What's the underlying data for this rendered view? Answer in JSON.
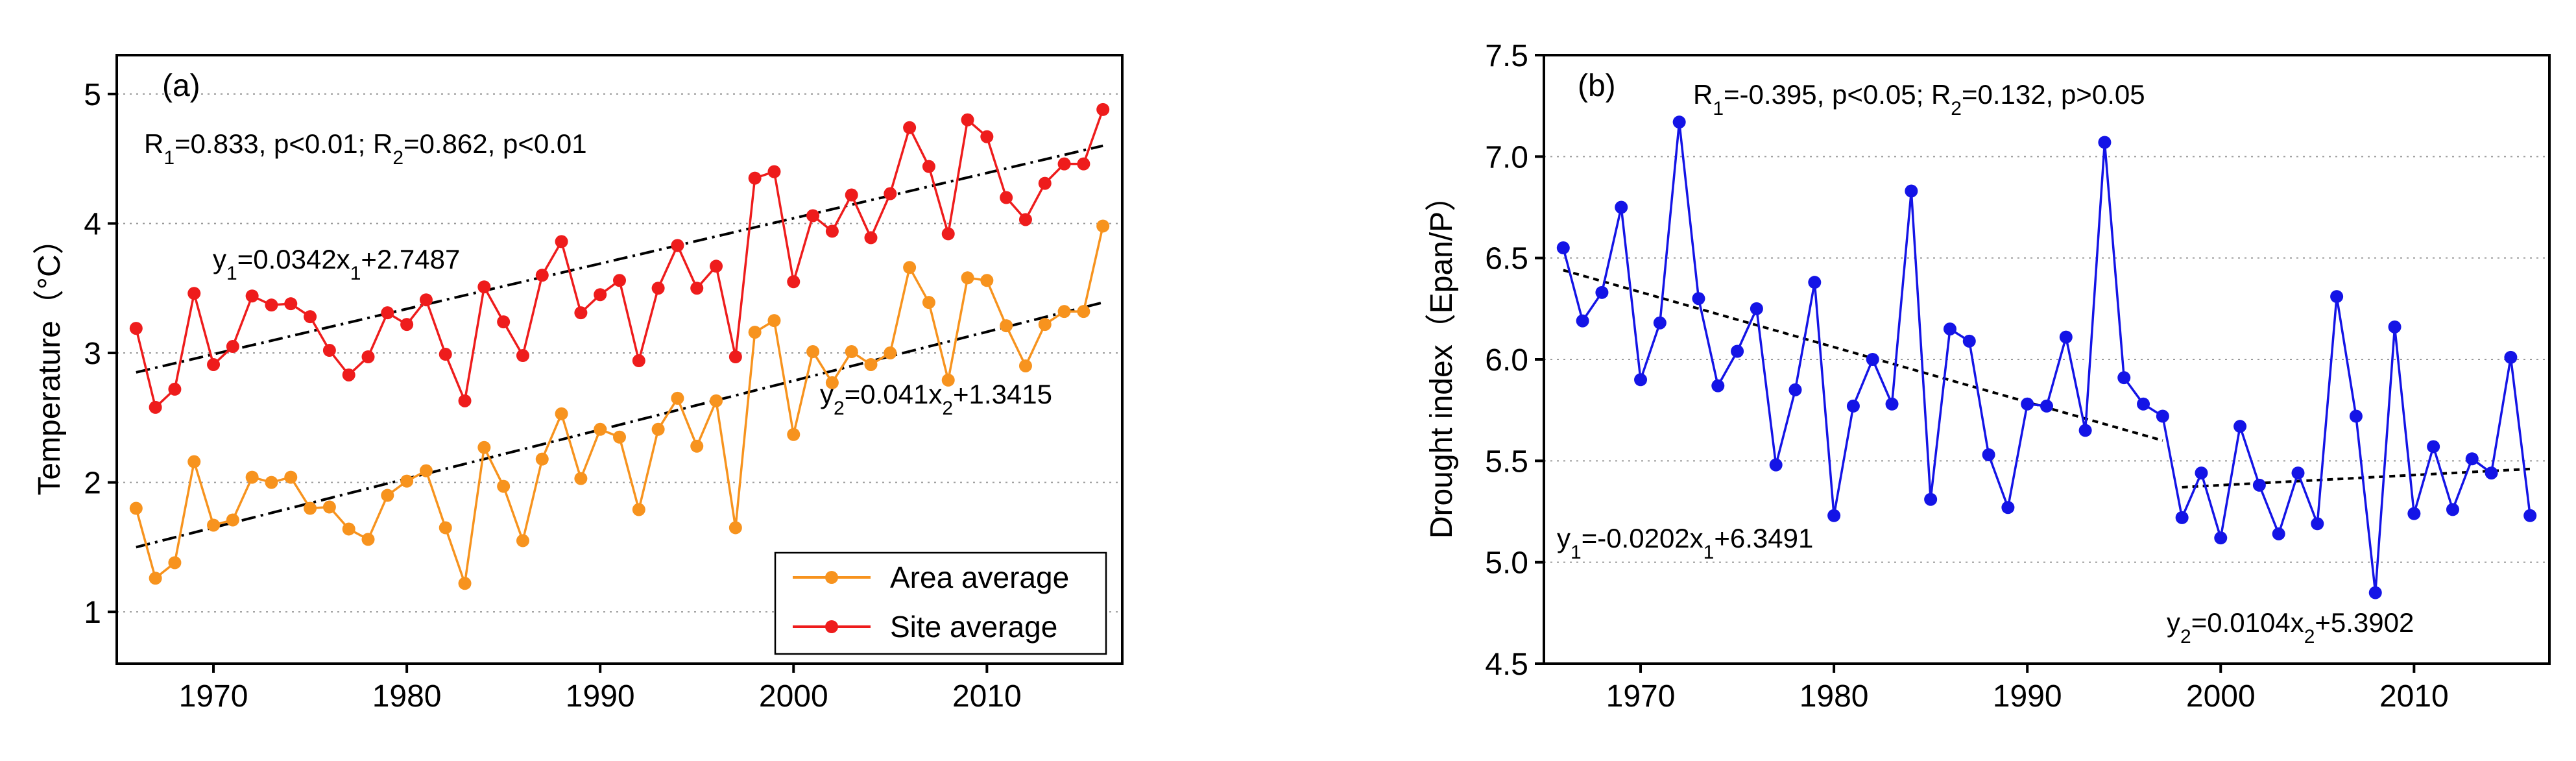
{
  "chart_data": [
    {
      "type": "line",
      "panel": "(a)",
      "ylabel": "Temperature（°C）",
      "xlim": [
        1965,
        2017
      ],
      "ylim": [
        0.6,
        5.3
      ],
      "xticks": [
        1970,
        1980,
        1990,
        2000,
        2010
      ],
      "yticks": [
        1,
        2,
        3,
        4,
        5
      ],
      "grid": "horizontal-dotted",
      "legend_position": "bottom-right",
      "annotation_r": {
        "parts": [
          "R",
          "1",
          "=0.833, p<0.01; R",
          "2",
          "=0.862, p<0.01"
        ]
      },
      "annotation_fit1": {
        "parts": [
          "y",
          "1",
          "=0.0342x",
          "1",
          "+2.7487"
        ]
      },
      "annotation_fit2": {
        "parts": [
          "y",
          "2",
          "=0.041x",
          "2",
          "+1.3415"
        ]
      },
      "x": [
        1966,
        1967,
        1968,
        1969,
        1970,
        1971,
        1972,
        1973,
        1974,
        1975,
        1976,
        1977,
        1978,
        1979,
        1980,
        1981,
        1982,
        1983,
        1984,
        1985,
        1986,
        1987,
        1988,
        1989,
        1990,
        1991,
        1992,
        1993,
        1994,
        1995,
        1996,
        1997,
        1998,
        1999,
        2000,
        2001,
        2002,
        2003,
        2004,
        2005,
        2006,
        2007,
        2008,
        2009,
        2010,
        2011,
        2012,
        2013,
        2014,
        2015,
        2016
      ],
      "series": [
        {
          "name": "Area average",
          "color": "#F7931E",
          "values": [
            1.8,
            1.26,
            1.38,
            2.16,
            1.67,
            1.71,
            2.04,
            2.0,
            2.04,
            1.8,
            1.81,
            1.64,
            1.56,
            1.9,
            2.01,
            2.09,
            1.65,
            1.22,
            2.27,
            1.97,
            1.55,
            2.18,
            2.53,
            2.03,
            2.41,
            2.35,
            1.79,
            2.41,
            2.65,
            2.28,
            2.63,
            1.65,
            3.16,
            3.25,
            2.37,
            3.01,
            2.77,
            3.01,
            2.91,
            3.0,
            3.66,
            3.39,
            2.79,
            3.58,
            3.56,
            3.21,
            2.9,
            3.22,
            3.32,
            3.32,
            3.98
          ],
          "trend": {
            "x": [
              1966,
              2016
            ],
            "y": [
              1.5,
              3.39
            ]
          }
        },
        {
          "name": "Site average",
          "color": "#EE1C1C",
          "values": [
            3.19,
            2.58,
            2.72,
            3.46,
            2.91,
            3.05,
            3.44,
            3.37,
            3.38,
            3.28,
            3.02,
            2.83,
            2.97,
            3.31,
            3.22,
            3.41,
            2.99,
            2.63,
            3.51,
            3.24,
            2.98,
            3.6,
            3.86,
            3.31,
            3.45,
            3.56,
            2.94,
            3.5,
            3.83,
            3.5,
            3.67,
            2.97,
            4.35,
            4.4,
            3.55,
            4.06,
            3.94,
            4.22,
            3.89,
            4.23,
            4.74,
            4.44,
            3.92,
            4.8,
            4.67,
            4.2,
            4.03,
            4.31,
            4.46,
            4.46,
            4.88
          ],
          "trend": {
            "x": [
              1966,
              2016
            ],
            "y": [
              2.85,
              4.6
            ]
          }
        }
      ]
    },
    {
      "type": "line",
      "panel": "(b)",
      "ylabel": "Drought index（Epan/P）",
      "xlim": [
        1965,
        2017
      ],
      "ylim": [
        4.5,
        7.5
      ],
      "xticks": [
        1970,
        1980,
        1990,
        2000,
        2010
      ],
      "yticks": [
        4.5,
        5.0,
        5.5,
        6.0,
        6.5,
        7.0,
        7.5
      ],
      "grid": "horizontal-dotted",
      "annotation_r": {
        "parts": [
          "R",
          "1",
          "=-0.395, p<0.05; R",
          "2",
          "=0.132, p>0.05"
        ]
      },
      "annotation_fit1": {
        "parts": [
          "y",
          "1",
          "=-0.0202x",
          "1",
          "+6.3491"
        ]
      },
      "annotation_fit2": {
        "parts": [
          "y",
          "2",
          "=0.0104x",
          "2",
          "+5.3902"
        ]
      },
      "x": [
        1966,
        1967,
        1968,
        1969,
        1970,
        1971,
        1972,
        1973,
        1974,
        1975,
        1976,
        1977,
        1978,
        1979,
        1980,
        1981,
        1982,
        1983,
        1984,
        1985,
        1986,
        1987,
        1988,
        1989,
        1990,
        1991,
        1992,
        1993,
        1994,
        1995,
        1996,
        1997,
        1998,
        1999,
        2000,
        2001,
        2002,
        2003,
        2004,
        2005,
        2006,
        2007,
        2008,
        2009,
        2010,
        2011,
        2012,
        2013,
        2014,
        2015,
        2016
      ],
      "series": [
        {
          "name": "Drought index",
          "color": "#1414E6",
          "values": [
            6.55,
            6.19,
            6.33,
            6.75,
            5.9,
            6.18,
            7.17,
            6.3,
            5.87,
            6.04,
            6.25,
            5.48,
            5.85,
            6.38,
            5.23,
            5.77,
            6.0,
            5.78,
            6.83,
            5.31,
            6.15,
            6.09,
            5.53,
            5.27,
            5.78,
            5.77,
            6.11,
            5.65,
            7.07,
            5.91,
            5.78,
            5.72,
            5.22,
            5.44,
            5.12,
            5.67,
            5.38,
            5.14,
            5.44,
            5.19,
            6.31,
            5.72,
            4.85,
            6.16,
            5.24,
            5.57,
            5.26,
            5.51,
            5.44,
            6.01,
            5.23
          ]
        }
      ],
      "trends": [
        {
          "x": [
            1966,
            1997
          ],
          "y": [
            6.44,
            5.6
          ]
        },
        {
          "x": [
            1998,
            2016
          ],
          "y": [
            5.37,
            5.46
          ]
        }
      ]
    }
  ],
  "legend": {
    "items": [
      {
        "label": "Area average",
        "color": "#F7931E"
      },
      {
        "label": "Site average",
        "color": "#EE1C1C"
      }
    ]
  }
}
